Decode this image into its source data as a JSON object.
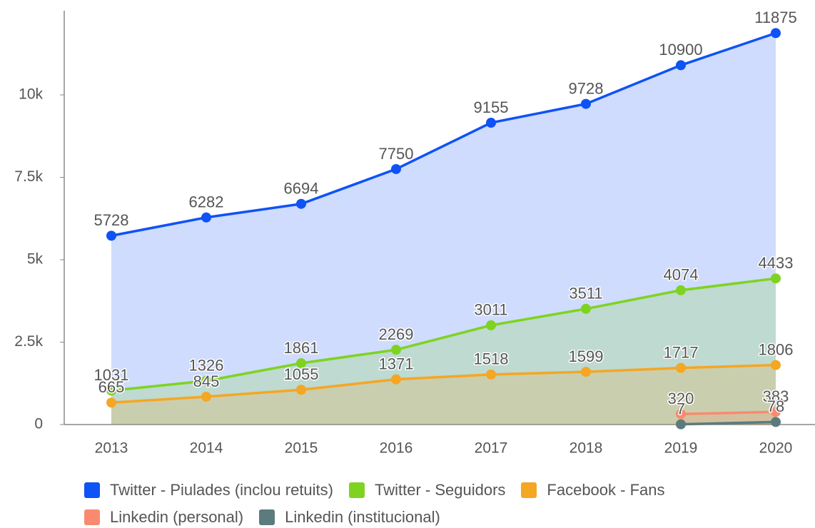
{
  "chart_data": {
    "type": "area",
    "categories": [
      "2013",
      "2014",
      "2015",
      "2016",
      "2017",
      "2018",
      "2019",
      "2020"
    ],
    "series": [
      {
        "name": "Twitter - Piulades (inclou retuits)",
        "color": "#0f52f5",
        "values": [
          5728,
          6282,
          6694,
          7750,
          9155,
          9728,
          10900,
          11875
        ]
      },
      {
        "name": "Twitter - Seguidors",
        "color": "#7ed321",
        "values": [
          1031,
          1326,
          1861,
          2269,
          3011,
          3511,
          4074,
          4433
        ]
      },
      {
        "name": "Facebook - Fans",
        "color": "#f5a623",
        "values": [
          665,
          845,
          1055,
          1371,
          1518,
          1599,
          1717,
          1806
        ]
      },
      {
        "name": "Linkedin (personal)",
        "color": "#f98a6f",
        "values": [
          null,
          null,
          null,
          null,
          null,
          null,
          320,
          383
        ]
      },
      {
        "name": "Linkedin (institucional)",
        "color": "#5b7b7d",
        "values": [
          null,
          null,
          null,
          null,
          null,
          null,
          7,
          78
        ]
      }
    ],
    "ylim": [
      0,
      12500
    ],
    "yticks": [
      0,
      {
        "value": 2500,
        "label": "2.5k"
      },
      {
        "value": 5000,
        "label": "5k"
      },
      {
        "value": 7500,
        "label": "7.5k"
      },
      {
        "value": 10000,
        "label": "10k"
      }
    ],
    "legend": "bottom"
  }
}
